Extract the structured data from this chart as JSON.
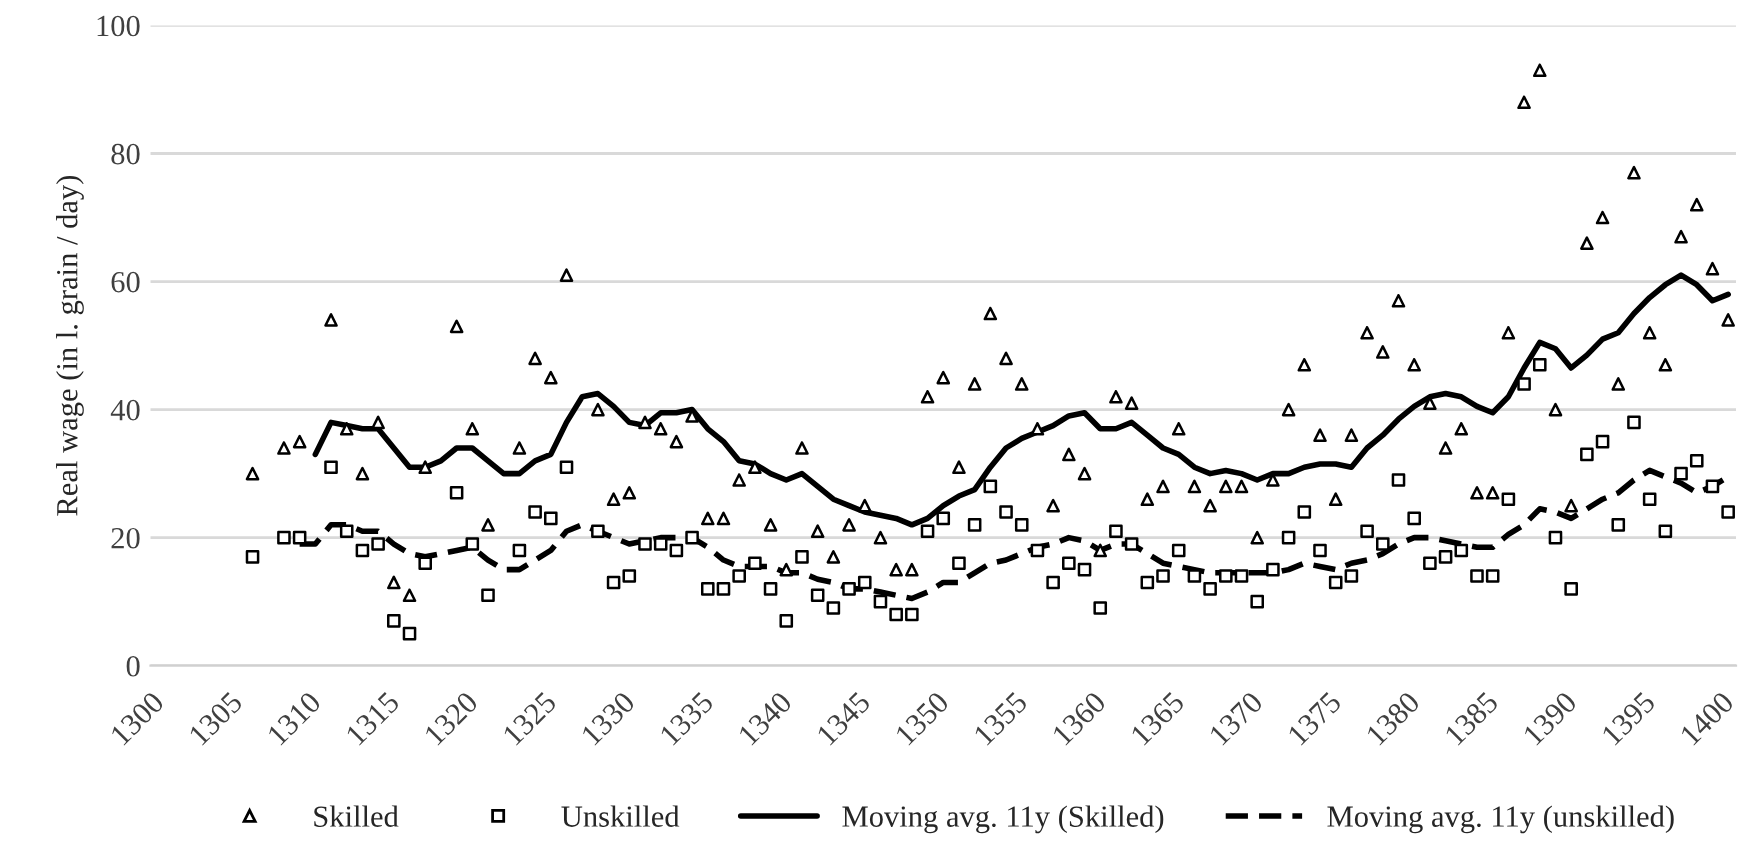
{
  "chart_data": {
    "type": "scatter",
    "ylabel": "Real wage (in l. grain / day)",
    "xlim": [
      1300,
      1401
    ],
    "xticks": [
      1300,
      1305,
      1310,
      1315,
      1320,
      1325,
      1330,
      1335,
      1340,
      1345,
      1350,
      1355,
      1360,
      1365,
      1370,
      1375,
      1380,
      1385,
      1390,
      1395,
      1400
    ],
    "ylim": [
      0,
      100
    ],
    "yticks": [
      0,
      20,
      40,
      60,
      80,
      100
    ],
    "grid": "y",
    "legend": "bottom",
    "series": [
      {
        "name": "Skilled",
        "marker": "triangle",
        "color": "#000000",
        "x": [
          1306.5,
          1308.5,
          1309.5,
          1311.5,
          1312.5,
          1313.5,
          1314.5,
          1315.5,
          1316.5,
          1317.5,
          1319.5,
          1320.5,
          1321.5,
          1323.5,
          1324.5,
          1325.5,
          1326.5,
          1328.5,
          1329.5,
          1330.5,
          1331.5,
          1332.5,
          1333.5,
          1334.5,
          1335.5,
          1336.5,
          1337.5,
          1338.5,
          1339.5,
          1340.5,
          1341.5,
          1342.5,
          1343.5,
          1344.5,
          1345.5,
          1346.5,
          1347.5,
          1348.5,
          1349.5,
          1350.5,
          1351.5,
          1352.5,
          1353.5,
          1354.5,
          1355.5,
          1356.5,
          1357.5,
          1358.5,
          1359.5,
          1360.5,
          1361.5,
          1362.5,
          1363.5,
          1364.5,
          1365.5,
          1366.5,
          1367.5,
          1368.5,
          1369.5,
          1370.5,
          1371.5,
          1372.5,
          1373.5,
          1374.5,
          1375.5,
          1376.5,
          1377.5,
          1378.5,
          1379.5,
          1380.5,
          1381.5,
          1382.5,
          1383.5,
          1384.5,
          1385.5,
          1386.5,
          1387.5,
          1388.5,
          1389.5,
          1390.5,
          1391.5,
          1392.5,
          1393.5,
          1394.5,
          1395.5,
          1396.5,
          1397.5,
          1398.5,
          1399.5,
          1400.5
        ],
        "values": [
          30,
          34,
          35,
          54,
          37,
          30,
          38,
          13,
          11,
          31,
          53,
          37,
          22,
          34,
          48,
          45,
          61,
          40,
          26,
          27,
          38,
          37,
          35,
          39,
          23,
          23,
          29,
          31,
          22,
          15,
          34,
          21,
          17,
          22,
          25,
          20,
          15,
          15,
          42,
          45,
          31,
          44,
          55,
          48,
          44,
          37,
          25,
          33,
          30,
          18,
          42,
          41,
          26,
          28,
          37,
          28,
          25,
          28,
          28,
          20,
          29,
          40,
          47,
          36,
          26,
          36,
          52,
          49,
          57,
          47,
          41,
          34,
          37,
          27,
          27,
          52,
          88,
          93,
          40,
          25,
          66,
          70,
          44,
          77,
          52,
          47,
          67,
          72,
          62,
          54
        ]
      },
      {
        "name": "Unskilled",
        "marker": "square",
        "color": "#000000",
        "x": [
          1306.5,
          1308.5,
          1309.5,
          1311.5,
          1312.5,
          1313.5,
          1314.5,
          1315.5,
          1316.5,
          1317.5,
          1319.5,
          1320.5,
          1321.5,
          1323.5,
          1324.5,
          1325.5,
          1326.5,
          1328.5,
          1329.5,
          1330.5,
          1331.5,
          1332.5,
          1333.5,
          1334.5,
          1335.5,
          1336.5,
          1337.5,
          1338.5,
          1339.5,
          1340.5,
          1341.5,
          1342.5,
          1343.5,
          1344.5,
          1345.5,
          1346.5,
          1347.5,
          1348.5,
          1349.5,
          1350.5,
          1351.5,
          1352.5,
          1353.5,
          1354.5,
          1355.5,
          1356.5,
          1357.5,
          1358.5,
          1359.5,
          1360.5,
          1361.5,
          1362.5,
          1363.5,
          1364.5,
          1365.5,
          1366.5,
          1367.5,
          1368.5,
          1369.5,
          1370.5,
          1371.5,
          1372.5,
          1373.5,
          1374.5,
          1375.5,
          1376.5,
          1377.5,
          1378.5,
          1379.5,
          1380.5,
          1381.5,
          1382.5,
          1383.5,
          1384.5,
          1385.5,
          1386.5,
          1387.5,
          1388.5,
          1389.5,
          1390.5,
          1391.5,
          1392.5,
          1393.5,
          1394.5,
          1395.5,
          1396.5,
          1397.5,
          1398.5,
          1399.5,
          1400.5
        ],
        "values": [
          17,
          20,
          20,
          31,
          21,
          18,
          19,
          7,
          5,
          16,
          27,
          19,
          11,
          18,
          24,
          23,
          31,
          21,
          13,
          14,
          19,
          19,
          18,
          20,
          12,
          12,
          14,
          16,
          12,
          7,
          17,
          11,
          9,
          12,
          13,
          10,
          8,
          8,
          21,
          23,
          16,
          22,
          28,
          24,
          22,
          18,
          13,
          16,
          15,
          9,
          21,
          19,
          13,
          14,
          18,
          14,
          12,
          14,
          14,
          10,
          15,
          20,
          24,
          18,
          13,
          14,
          21,
          19,
          29,
          23,
          16,
          17,
          18,
          14,
          14,
          26,
          44,
          47,
          20,
          12,
          33,
          35,
          22,
          38,
          26,
          21,
          30,
          32,
          28,
          24
        ]
      },
      {
        "name": "Moving avg. 11y (Skilled)",
        "type": "line",
        "line_style": "solid",
        "color": "#000000",
        "x": [
          1310.5,
          1311.5,
          1312.5,
          1313.5,
          1314.5,
          1315.5,
          1316.5,
          1317.5,
          1318.5,
          1319.5,
          1320.5,
          1321.5,
          1322.5,
          1323.5,
          1324.5,
          1325.5,
          1326.5,
          1327.5,
          1328.5,
          1329.5,
          1330.5,
          1331.5,
          1332.5,
          1333.5,
          1334.5,
          1335.5,
          1336.5,
          1337.5,
          1338.5,
          1339.5,
          1340.5,
          1341.5,
          1342.5,
          1343.5,
          1344.5,
          1345.5,
          1346.5,
          1347.5,
          1348.5,
          1349.5,
          1350.5,
          1351.5,
          1352.5,
          1353.5,
          1354.5,
          1355.5,
          1356.5,
          1357.5,
          1358.5,
          1359.5,
          1360.5,
          1361.5,
          1362.5,
          1363.5,
          1364.5,
          1365.5,
          1366.5,
          1367.5,
          1368.5,
          1369.5,
          1370.5,
          1371.5,
          1372.5,
          1373.5,
          1374.5,
          1375.5,
          1376.5,
          1377.5,
          1378.5,
          1379.5,
          1380.5,
          1381.5,
          1382.5,
          1383.5,
          1384.5,
          1385.5,
          1386.5,
          1387.5,
          1388.5,
          1389.5,
          1390.5,
          1391.5,
          1392.5,
          1393.5,
          1394.5,
          1395.5,
          1396.5,
          1397.5,
          1398.5,
          1399.5,
          1400.5
        ],
        "values": [
          33,
          38,
          37.5,
          37,
          37,
          34,
          31,
          31,
          32,
          34,
          34,
          32,
          30,
          30,
          32,
          33,
          38,
          42,
          42.5,
          40.5,
          38,
          37.5,
          39.5,
          39.5,
          40,
          37,
          35,
          32,
          31.5,
          30,
          29,
          30,
          28,
          26,
          25,
          24,
          23.5,
          23,
          22,
          23,
          25,
          26.5,
          27.5,
          31,
          34,
          35.5,
          36.5,
          37.5,
          39,
          39.5,
          37,
          37,
          38,
          36,
          34,
          33,
          31,
          30,
          30.5,
          30,
          29,
          30,
          30,
          31,
          31.5,
          31.5,
          31,
          34,
          36,
          38.5,
          40.5,
          42,
          42.5,
          42,
          40.5,
          39.5,
          42,
          46.5,
          50.5,
          49.5,
          46.5,
          48.5,
          51,
          52,
          55,
          57.5,
          59.5,
          61,
          59.5,
          57,
          58
        ]
      },
      {
        "name": "Moving avg. 11y (unskilled)",
        "type": "line",
        "line_style": "dashed",
        "color": "#000000",
        "x": [
          1309.5,
          1310.5,
          1311.5,
          1312.5,
          1313.5,
          1314.5,
          1315.5,
          1316.5,
          1317.5,
          1318.5,
          1319.5,
          1320.5,
          1321.5,
          1322.5,
          1323.5,
          1324.5,
          1325.5,
          1326.5,
          1327.5,
          1328.5,
          1329.5,
          1330.5,
          1331.5,
          1332.5,
          1333.5,
          1334.5,
          1335.5,
          1336.5,
          1337.5,
          1338.5,
          1339.5,
          1340.5,
          1341.5,
          1342.5,
          1343.5,
          1344.5,
          1345.5,
          1346.5,
          1347.5,
          1348.5,
          1349.5,
          1350.5,
          1351.5,
          1352.5,
          1353.5,
          1354.5,
          1355.5,
          1356.5,
          1357.5,
          1358.5,
          1359.5,
          1360.5,
          1361.5,
          1362.5,
          1363.5,
          1364.5,
          1365.5,
          1366.5,
          1367.5,
          1368.5,
          1369.5,
          1370.5,
          1371.5,
          1372.5,
          1373.5,
          1374.5,
          1375.5,
          1376.5,
          1377.5,
          1378.5,
          1379.5,
          1380.5,
          1381.5,
          1382.5,
          1383.5,
          1384.5,
          1385.5,
          1386.5,
          1387.5,
          1388.5,
          1389.5,
          1390.5,
          1391.5,
          1392.5,
          1393.5,
          1394.5,
          1395.5,
          1396.5,
          1397.5,
          1398.5,
          1399.5,
          1400.5
        ],
        "values": [
          19,
          19,
          22,
          22,
          21,
          21,
          19,
          17.5,
          17,
          17.5,
          18,
          18.5,
          16.5,
          15,
          15,
          16.5,
          18,
          21,
          22,
          21,
          20,
          19,
          19.5,
          20,
          20,
          20,
          18.5,
          16.5,
          15.5,
          15.5,
          15.5,
          14.5,
          14.5,
          13.5,
          13,
          12,
          12,
          11.5,
          11,
          10.5,
          11.5,
          13,
          13,
          14.5,
          16,
          16.5,
          17.5,
          18.5,
          19,
          20,
          19.5,
          18,
          19,
          19,
          17.5,
          16,
          15.5,
          15,
          14.5,
          14.5,
          14.5,
          14.5,
          14.5,
          15,
          16,
          15.5,
          15,
          16,
          16.5,
          17.5,
          19,
          20,
          20,
          19.5,
          19,
          18.5,
          18.5,
          20.5,
          22,
          24.5,
          24,
          23,
          24.5,
          26,
          27,
          29,
          30.5,
          29.5,
          28.5,
          27,
          28,
          29.5
        ]
      }
    ]
  }
}
